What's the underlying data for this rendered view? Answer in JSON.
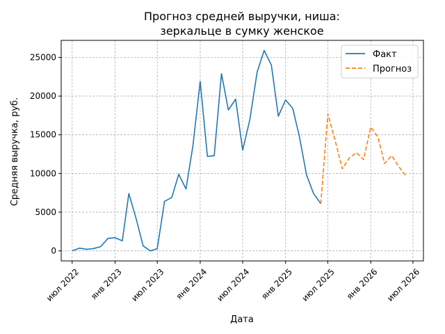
{
  "chart_data": {
    "type": "line",
    "title_lines": [
      "Прогноз средней выручки, ниша:",
      "зеркальце в сумку женское"
    ],
    "xlabel": "Дата",
    "ylabel": "Средняя выручка, руб.",
    "x_ticks": [
      {
        "date": "2022-07-01",
        "label": "июл 2022"
      },
      {
        "date": "2023-01-01",
        "label": "янв 2023"
      },
      {
        "date": "2023-07-01",
        "label": "июл 2023"
      },
      {
        "date": "2024-01-01",
        "label": "янв 2024"
      },
      {
        "date": "2024-07-01",
        "label": "июл 2024"
      },
      {
        "date": "2025-01-01",
        "label": "янв 2025"
      },
      {
        "date": "2025-07-01",
        "label": "июл 2025"
      },
      {
        "date": "2026-01-01",
        "label": "янв 2026"
      },
      {
        "date": "2026-07-01",
        "label": "июл 2026"
      }
    ],
    "xlim": [
      "2022-05-15",
      "2026-08-15"
    ],
    "y_ticks": [
      0,
      5000,
      10000,
      15000,
      20000,
      25000
    ],
    "y_tick_labels": [
      "0",
      "5000",
      "10000",
      "15000",
      "20000",
      "25000"
    ],
    "ylim": [
      -1300,
      27200
    ],
    "grid": true,
    "legend_position": "top-right",
    "series": [
      {
        "name": "Факт",
        "color": "#1f77b4",
        "dash": "solid",
        "x": [
          "2022-07-01",
          "2022-08-01",
          "2022-09-01",
          "2022-10-01",
          "2022-11-01",
          "2022-12-01",
          "2023-01-01",
          "2023-02-01",
          "2023-03-01",
          "2023-04-01",
          "2023-05-01",
          "2023-06-01",
          "2023-07-01",
          "2023-08-01",
          "2023-09-01",
          "2023-10-01",
          "2023-11-01",
          "2023-12-01",
          "2024-01-01",
          "2024-02-01",
          "2024-03-01",
          "2024-04-01",
          "2024-05-01",
          "2024-06-01",
          "2024-07-01",
          "2024-08-01",
          "2024-09-01",
          "2024-10-01",
          "2024-11-01",
          "2024-12-01",
          "2025-01-01",
          "2025-02-01",
          "2025-03-01",
          "2025-04-01",
          "2025-05-01",
          "2025-06-01"
        ],
        "values": [
          0,
          350,
          200,
          300,
          550,
          1600,
          1700,
          1300,
          7400,
          4200,
          650,
          0,
          300,
          6400,
          6900,
          9900,
          8000,
          13600,
          21900,
          12200,
          12300,
          22900,
          18200,
          19600,
          13000,
          17000,
          23100,
          25900,
          24000,
          17400,
          19500,
          18400,
          14800,
          9800,
          7400,
          6100
        ]
      },
      {
        "name": "Прогноз",
        "color": "#ff7f0e",
        "dash": "dashed",
        "x": [
          "2025-06-01",
          "2025-07-01",
          "2025-08-01",
          "2025-09-01",
          "2025-10-01",
          "2025-11-01",
          "2025-12-01",
          "2026-01-01",
          "2026-02-01",
          "2026-03-01",
          "2026-04-01",
          "2026-05-01",
          "2026-06-01"
        ],
        "values": [
          6100,
          17700,
          14300,
          10600,
          12000,
          12700,
          11800,
          16000,
          14700,
          11300,
          12300,
          10900,
          9700
        ]
      }
    ]
  }
}
